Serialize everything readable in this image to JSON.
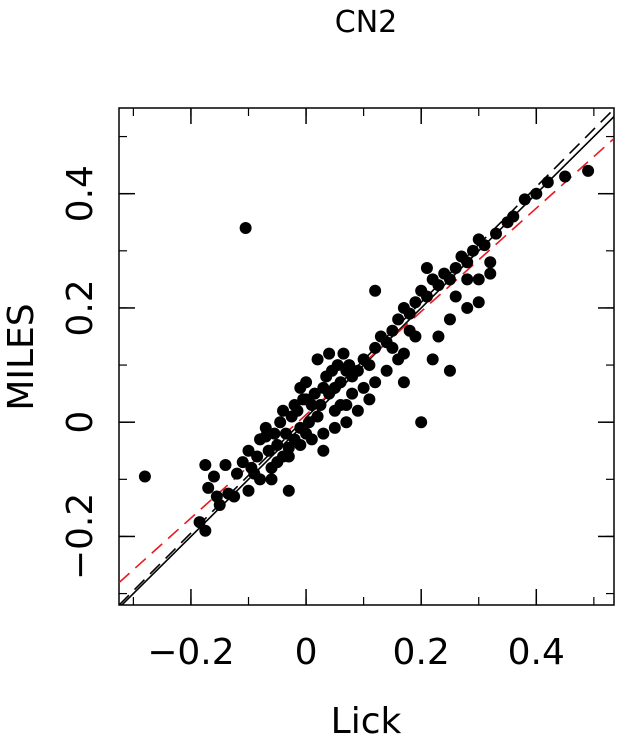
{
  "chart_data": {
    "type": "scatter",
    "title": "CN2",
    "xlabel": "Lick",
    "ylabel": "MILES",
    "xlim": [
      -0.325,
      0.535
    ],
    "ylim": [
      -0.32,
      0.55
    ],
    "xticks": [
      -0.2,
      0,
      0.2,
      0.4
    ],
    "xtick_labels": [
      "−0.2",
      "0",
      "0.2",
      "0.4"
    ],
    "yticks": [
      -0.2,
      0,
      0.2,
      0.4
    ],
    "ytick_labels": [
      "−0.2",
      "0",
      "0.2",
      "0.4"
    ],
    "grid": false,
    "lines": [
      {
        "label": "one-to-one",
        "style": "solid",
        "color": "#000000",
        "slope": 1.0,
        "intercept": 0.0
      },
      {
        "label": "fit",
        "style": "dashed",
        "color": "#000000",
        "slope": 1.01,
        "intercept": 0.008
      },
      {
        "label": "fit-red",
        "style": "dashed",
        "color": "#e8191f",
        "slope": 0.904,
        "intercept": 0.013
      }
    ],
    "points": [
      [
        -0.28,
        -0.095
      ],
      [
        -0.105,
        0.34
      ],
      [
        -0.175,
        -0.075
      ],
      [
        -0.16,
        -0.095
      ],
      [
        -0.17,
        -0.115
      ],
      [
        -0.155,
        -0.13
      ],
      [
        -0.135,
        -0.125
      ],
      [
        -0.14,
        -0.075
      ],
      [
        -0.185,
        -0.175
      ],
      [
        -0.175,
        -0.19
      ],
      [
        -0.15,
        -0.145
      ],
      [
        -0.125,
        -0.13
      ],
      [
        -0.12,
        -0.09
      ],
      [
        -0.11,
        -0.07
      ],
      [
        -0.1,
        -0.05
      ],
      [
        -0.095,
        -0.08
      ],
      [
        -0.085,
        -0.06
      ],
      [
        -0.08,
        -0.03
      ],
      [
        -0.07,
        -0.025
      ],
      [
        -0.065,
        -0.05
      ],
      [
        -0.06,
        -0.08
      ],
      [
        -0.055,
        -0.02
      ],
      [
        -0.05,
        -0.04
      ],
      [
        -0.045,
        0.0
      ],
      [
        -0.04,
        -0.06
      ],
      [
        -0.035,
        -0.02
      ],
      [
        -0.03,
        -0.045
      ],
      [
        -0.025,
        0.01
      ],
      [
        -0.02,
        -0.03
      ],
      [
        -0.015,
        0.02
      ],
      [
        -0.01,
        -0.01
      ],
      [
        -0.005,
        0.04
      ],
      [
        0.0,
        -0.02
      ],
      [
        0.005,
        0.0
      ],
      [
        0.01,
        0.03
      ],
      [
        0.015,
        0.05
      ],
      [
        0.02,
        0.01
      ],
      [
        0.025,
        0.03
      ],
      [
        0.03,
        0.06
      ],
      [
        0.035,
        0.08
      ],
      [
        0.04,
        0.05
      ],
      [
        0.045,
        0.09
      ],
      [
        0.05,
        0.06
      ],
      [
        0.055,
        0.1
      ],
      [
        0.06,
        0.07
      ],
      [
        0.065,
        0.12
      ],
      [
        0.07,
        0.09
      ],
      [
        0.075,
        0.1
      ],
      [
        0.08,
        0.08
      ],
      [
        0.09,
        0.09
      ],
      [
        0.1,
        0.11
      ],
      [
        0.11,
        0.1
      ],
      [
        0.12,
        0.13
      ],
      [
        0.13,
        0.15
      ],
      [
        0.14,
        0.14
      ],
      [
        0.15,
        0.16
      ],
      [
        0.16,
        0.18
      ],
      [
        0.17,
        0.2
      ],
      [
        0.18,
        0.19
      ],
      [
        0.19,
        0.21
      ],
      [
        0.2,
        0.23
      ],
      [
        0.21,
        0.22
      ],
      [
        0.22,
        0.25
      ],
      [
        0.23,
        0.24
      ],
      [
        0.24,
        0.26
      ],
      [
        0.25,
        0.25
      ],
      [
        0.26,
        0.27
      ],
      [
        0.27,
        0.29
      ],
      [
        0.28,
        0.28
      ],
      [
        0.29,
        0.3
      ],
      [
        0.3,
        0.32
      ],
      [
        0.31,
        0.31
      ],
      [
        0.33,
        0.33
      ],
      [
        0.35,
        0.35
      ],
      [
        0.36,
        0.36
      ],
      [
        0.38,
        0.39
      ],
      [
        0.4,
        0.4
      ],
      [
        0.42,
        0.42
      ],
      [
        0.45,
        0.43
      ],
      [
        0.49,
        0.44
      ],
      [
        0.2,
        0.0
      ],
      [
        0.17,
        0.07
      ],
      [
        0.25,
        0.09
      ],
      [
        0.28,
        0.2
      ],
      [
        0.3,
        0.21
      ],
      [
        0.32,
        0.28
      ],
      [
        0.12,
        0.23
      ],
      [
        0.21,
        0.27
      ],
      [
        0.22,
        0.11
      ],
      [
        -0.1,
        -0.12
      ],
      [
        -0.08,
        -0.1
      ],
      [
        -0.03,
        -0.12
      ],
      [
        0.03,
        -0.05
      ],
      [
        0.05,
        0.02
      ],
      [
        0.07,
        0.03
      ],
      [
        0.15,
        0.13
      ],
      [
        0.17,
        0.12
      ],
      [
        0.19,
        0.15
      ],
      [
        0.23,
        0.15
      ],
      [
        0.25,
        0.18
      ],
      [
        0.26,
        0.22
      ],
      [
        0.28,
        0.25
      ],
      [
        0.3,
        0.25
      ],
      [
        0.32,
        0.26
      ],
      [
        -0.06,
        -0.1
      ],
      [
        -0.09,
        -0.09
      ],
      [
        0.0,
        0.07
      ],
      [
        0.02,
        0.11
      ],
      [
        0.04,
        0.12
      ],
      [
        0.06,
        0.03
      ],
      [
        0.08,
        0.05
      ],
      [
        0.1,
        0.06
      ],
      [
        0.12,
        0.07
      ],
      [
        0.14,
        0.09
      ],
      [
        0.16,
        0.11
      ],
      [
        0.18,
        0.16
      ],
      [
        -0.01,
        0.06
      ],
      [
        0.0,
        0.04
      ],
      [
        -0.02,
        0.03
      ],
      [
        -0.04,
        0.02
      ],
      [
        -0.07,
        -0.01
      ],
      [
        -0.05,
        -0.07
      ],
      [
        -0.03,
        -0.06
      ],
      [
        -0.01,
        -0.04
      ],
      [
        0.01,
        -0.03
      ],
      [
        0.03,
        -0.02
      ],
      [
        0.05,
        -0.01
      ],
      [
        0.07,
        0.0
      ],
      [
        0.09,
        0.02
      ],
      [
        0.11,
        0.04
      ]
    ]
  }
}
